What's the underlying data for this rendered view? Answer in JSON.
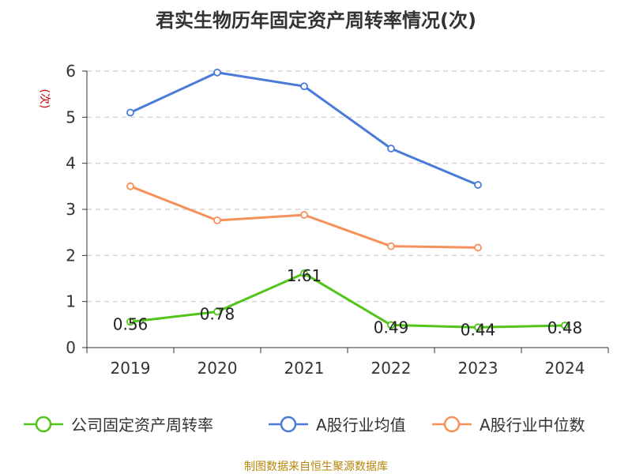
{
  "chart_data": {
    "type": "line",
    "title": "君实生物历年固定资产周转率情况(次)",
    "ylabel": "(次)",
    "xlabel": "",
    "categories": [
      "2019",
      "2020",
      "2021",
      "2022",
      "2023",
      "2024"
    ],
    "ylim": [
      0,
      6
    ],
    "yticks": [
      "0",
      "1",
      "2",
      "3",
      "4",
      "5",
      "6"
    ],
    "grid": true,
    "legend_position": "bottom",
    "series": [
      {
        "name": "公司固定资产周转率",
        "color": "#52c41a",
        "values": [
          0.56,
          0.78,
          1.61,
          0.49,
          0.44,
          0.48
        ],
        "labels": [
          "0.56",
          "0.78",
          "1.61",
          "0.49",
          "0.44",
          "0.48"
        ]
      },
      {
        "name": "A股行业均值",
        "color": "#4a7bd8",
        "values": [
          5.1,
          5.97,
          5.67,
          4.32,
          3.53,
          null
        ]
      },
      {
        "name": "A股行业中位数",
        "color": "#f7905a",
        "values": [
          3.5,
          2.76,
          2.88,
          2.2,
          2.17,
          null
        ]
      }
    ]
  },
  "colors": {
    "ylabel": "#cc0000",
    "source": "#b8860b",
    "axis": "#333333",
    "grid": "#cccccc"
  },
  "source_text": "制图数据来自恒生聚源数据库"
}
